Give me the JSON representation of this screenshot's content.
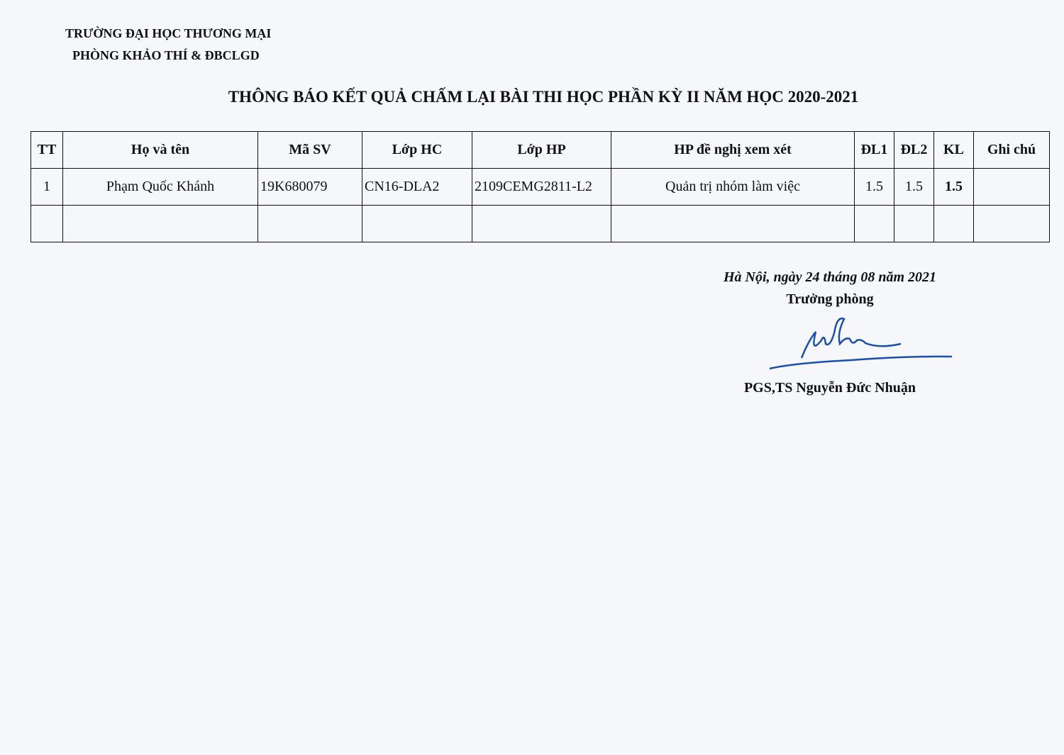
{
  "header": {
    "university": "TRƯỜNG ĐẠI HỌC THƯƠNG MẠI",
    "department": "PHÒNG KHẢO THÍ & ĐBCLGD"
  },
  "title": "THÔNG BÁO KẾT QUẢ CHẤM LẠI BÀI THI HỌC PHẦN KỲ II NĂM HỌC 2020-2021",
  "table": {
    "columns": [
      "TT",
      "Họ và tên",
      "Mã SV",
      "Lớp HC",
      "Lớp HP",
      "HP đề nghị xem xét",
      "ĐL1",
      "ĐL2",
      "KL",
      "Ghi chú"
    ],
    "rows": [
      [
        "1",
        "Phạm Quốc Khánh",
        "19K680079",
        "CN16-DLA2",
        "2109CEMG2811-L2",
        "Quản trị nhóm làm việc",
        "1.5",
        "1.5",
        "1.5",
        ""
      ],
      [
        "",
        "",
        "",
        "",
        "",
        "",
        "",
        "",
        "",
        ""
      ]
    ]
  },
  "footer": {
    "date": "Hà Nội, ngày 24  tháng 08 năm 2021",
    "role": "Trưởng phòng",
    "signer": "PGS,TS Nguyễn Đức Nhuận",
    "signature_color": "#1a4fb0"
  }
}
